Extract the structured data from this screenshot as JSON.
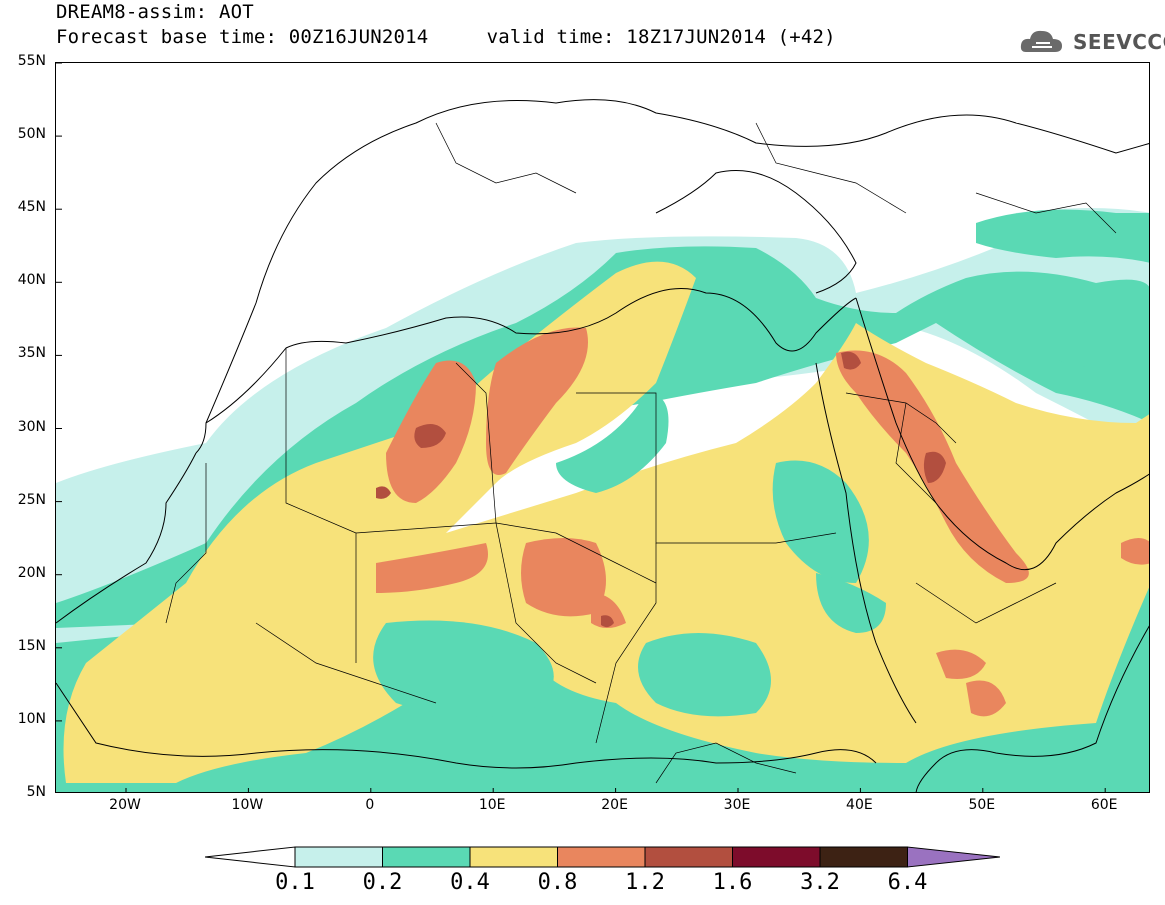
{
  "header": {
    "title": "DREAM8-assim: AOT",
    "subtitle": "Forecast base time: 00Z16JUN2014     valid time: 18Z17JUN2014 (+42)",
    "logo_text": "SEEVCCC"
  },
  "axes": {
    "lat_labels": [
      "55N",
      "50N",
      "45N",
      "40N",
      "35N",
      "30N",
      "25N",
      "20N",
      "15N",
      "10N",
      "5N"
    ],
    "lon_labels": [
      "20W",
      "10W",
      "0",
      "10E",
      "20E",
      "30E",
      "40E",
      "50E",
      "60E"
    ]
  },
  "colorbar": {
    "labels": [
      "0.1",
      "0.2",
      "0.4",
      "0.8",
      "1.2",
      "1.6",
      "3.2",
      "6.4"
    ],
    "colors": [
      "#c6f0eb",
      "#5ad9b4",
      "#f7e27a",
      "#e9865e",
      "#b24f3f",
      "#7d0c2b",
      "#3d2214",
      "#9a72c0"
    ]
  },
  "palette": {
    "low": "#c6f0eb",
    "mid": "#5ad9b4",
    "high": "#f7e27a",
    "vhigh": "#e9865e",
    "vvhigh": "#b24f3f",
    "extreme": "#7d0c2b"
  }
}
